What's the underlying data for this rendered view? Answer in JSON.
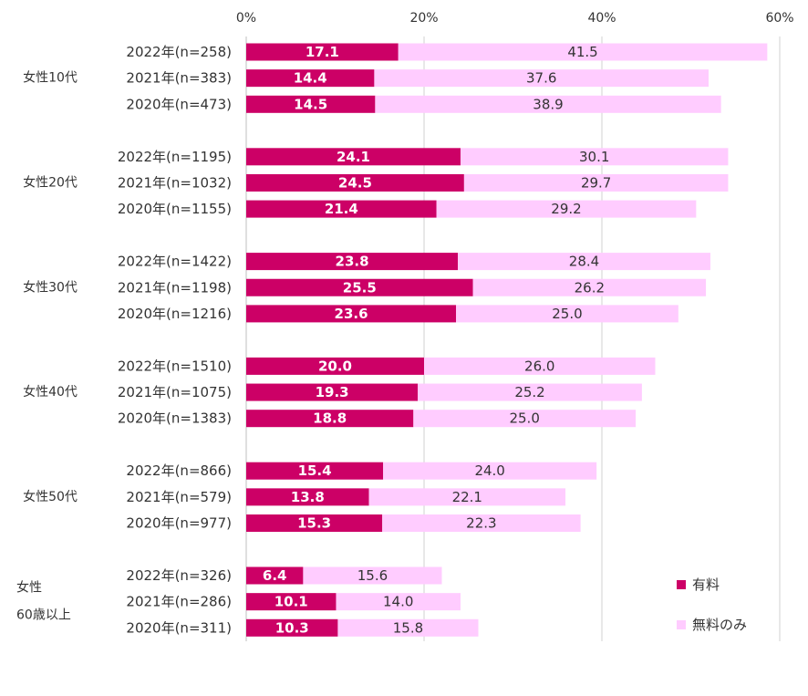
{
  "chart_data": {
    "type": "bar",
    "orientation": "horizontal",
    "stacked": true,
    "x_ticks": [
      "0%",
      "20%",
      "40%",
      "60%"
    ],
    "xlim": [
      0,
      60
    ],
    "grid": true,
    "legend_position": "bottom-right",
    "groups": [
      {
        "label": "女性10代",
        "categories": [
          "2022年(n=258)",
          "2021年(n=383)",
          "2020年(n=473)"
        ]
      },
      {
        "label": "女性20代",
        "categories": [
          "2022年(n=1195)",
          "2021年(n=1032)",
          "2020年(n=1155)"
        ]
      },
      {
        "label": "女性30代",
        "categories": [
          "2022年(n=1422)",
          "2021年(n=1198)",
          "2020年(n=1216)"
        ]
      },
      {
        "label": "女性40代",
        "categories": [
          "2022年(n=1510)",
          "2021年(n=1075)",
          "2020年(n=1383)"
        ]
      },
      {
        "label": "女性50代",
        "categories": [
          "2022年(n=866)",
          "2021年(n=579)",
          "2020年(n=977)"
        ]
      },
      {
        "label_lines": [
          "女性",
          "60歳以上"
        ],
        "categories": [
          "2022年(n=326)",
          "2021年(n=286)",
          "2020年(n=311)"
        ]
      }
    ],
    "series": [
      {
        "name": "有料",
        "color": "#cc0066",
        "label_color": "#ffffff",
        "values": [
          17.1,
          14.4,
          14.5,
          24.1,
          24.5,
          21.4,
          23.8,
          25.5,
          23.6,
          20.0,
          19.3,
          18.8,
          15.4,
          13.8,
          15.3,
          6.4,
          10.1,
          10.3
        ],
        "labels": [
          "17.1",
          "14.4",
          "14.5",
          "24.1",
          "24.5",
          "21.4",
          "23.8",
          "25.5",
          "23.6",
          "20.0",
          "19.3",
          "18.8",
          "15.4",
          "13.8",
          "15.3",
          "6.4",
          "10.1",
          "10.3"
        ]
      },
      {
        "name": "無料のみ",
        "color": "#ffccff",
        "label_color": "#333333",
        "values": [
          41.5,
          37.6,
          38.9,
          30.1,
          29.7,
          29.2,
          28.4,
          26.2,
          25.0,
          26.0,
          25.2,
          25.0,
          24.0,
          22.1,
          22.3,
          15.6,
          14.0,
          15.8
        ],
        "labels": [
          "41.5",
          "37.6",
          "38.9",
          "30.1",
          "29.7",
          "29.2",
          "28.4",
          "26.2",
          "25.0",
          "26.0",
          "25.2",
          "25.0",
          "24.0",
          "22.1",
          "22.3",
          "15.6",
          "14.0",
          "15.8"
        ]
      }
    ]
  },
  "colors": {
    "grid": "#d0d0d0",
    "text": "#333333"
  }
}
